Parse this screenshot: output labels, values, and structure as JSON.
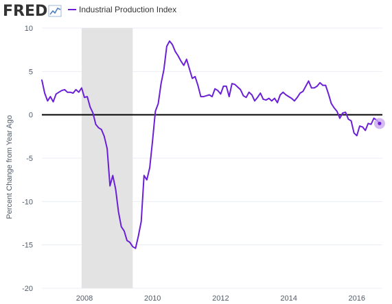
{
  "header": {
    "logo_text": "FRED",
    "legend_label": "Industrial Production Index"
  },
  "colors": {
    "series": "#6a1fd6",
    "recession": "#e3e3e3",
    "zero_line": "#000000",
    "grid": "#e9eef3",
    "axis_text": "#505a66",
    "logo_text": "#333333",
    "logo_icon": "#4a7fc1",
    "end_marker_halo": "#caa8f0"
  },
  "chart_data": {
    "type": "line",
    "title": "",
    "xlabel": "",
    "ylabel": "Percent Change from Year Ago",
    "ylim": [
      -20,
      10
    ],
    "xlim": [
      2006.75,
      2016.75
    ],
    "y_ticks": [
      10,
      5,
      0,
      -5,
      -10,
      -15,
      -20
    ],
    "x_ticks": [
      2008,
      2010,
      2012,
      2014,
      2016
    ],
    "grid": true,
    "zero_line": true,
    "recession_shading": [
      {
        "start": 2007.917,
        "end": 2009.417
      }
    ],
    "series": [
      {
        "name": "Industrial Production Index",
        "x": [
          2006.75,
          2006.833,
          2006.917,
          2007.0,
          2007.083,
          2007.167,
          2007.25,
          2007.333,
          2007.417,
          2007.5,
          2007.583,
          2007.667,
          2007.75,
          2007.833,
          2007.917,
          2008.0,
          2008.083,
          2008.167,
          2008.25,
          2008.333,
          2008.417,
          2008.5,
          2008.583,
          2008.667,
          2008.75,
          2008.833,
          2008.917,
          2009.0,
          2009.083,
          2009.167,
          2009.25,
          2009.333,
          2009.417,
          2009.5,
          2009.583,
          2009.667,
          2009.75,
          2009.833,
          2009.917,
          2010.0,
          2010.083,
          2010.167,
          2010.25,
          2010.333,
          2010.417,
          2010.5,
          2010.583,
          2010.667,
          2010.75,
          2010.833,
          2010.917,
          2011.0,
          2011.083,
          2011.167,
          2011.25,
          2011.333,
          2011.417,
          2011.5,
          2011.583,
          2011.667,
          2011.75,
          2011.833,
          2011.917,
          2012.0,
          2012.083,
          2012.167,
          2012.25,
          2012.333,
          2012.417,
          2012.5,
          2012.583,
          2012.667,
          2012.75,
          2012.833,
          2012.917,
          2013.0,
          2013.083,
          2013.167,
          2013.25,
          2013.333,
          2013.417,
          2013.5,
          2013.583,
          2013.667,
          2013.75,
          2013.833,
          2013.917,
          2014.0,
          2014.083,
          2014.167,
          2014.25,
          2014.333,
          2014.417,
          2014.5,
          2014.583,
          2014.667,
          2014.75,
          2014.833,
          2014.917,
          2015.0,
          2015.083,
          2015.167,
          2015.25,
          2015.333,
          2015.417,
          2015.5,
          2015.583,
          2015.667,
          2015.75,
          2015.833,
          2015.917,
          2016.0,
          2016.083,
          2016.167,
          2016.25,
          2016.333,
          2016.417,
          2016.5,
          2016.583,
          2016.667
        ],
        "values": [
          4.0,
          2.5,
          1.6,
          2.1,
          1.5,
          2.4,
          2.6,
          2.8,
          2.9,
          2.6,
          2.6,
          2.5,
          2.9,
          2.6,
          3.1,
          2.0,
          2.1,
          0.9,
          0.2,
          -1.1,
          -1.5,
          -1.7,
          -2.5,
          -3.9,
          -8.2,
          -7.0,
          -8.6,
          -11.2,
          -12.9,
          -13.4,
          -14.5,
          -14.7,
          -15.2,
          -15.4,
          -14.0,
          -12.3,
          -7.0,
          -7.5,
          -6.1,
          -3.0,
          0.4,
          1.3,
          3.6,
          5.2,
          7.9,
          8.5,
          8.1,
          7.3,
          6.8,
          6.2,
          5.7,
          6.4,
          5.3,
          4.2,
          4.4,
          3.4,
          2.1,
          2.1,
          2.2,
          2.3,
          2.1,
          3.0,
          2.8,
          2.4,
          3.3,
          3.3,
          2.1,
          3.6,
          3.5,
          3.2,
          2.9,
          2.2,
          2.0,
          2.6,
          2.3,
          1.6,
          2.0,
          2.5,
          1.8,
          1.7,
          1.9,
          1.6,
          1.9,
          1.4,
          2.3,
          2.6,
          2.3,
          2.1,
          1.9,
          1.6,
          2.0,
          2.5,
          2.7,
          3.3,
          3.9,
          3.1,
          3.1,
          3.3,
          3.7,
          3.4,
          3.4,
          2.4,
          1.3,
          0.8,
          0.4,
          -0.4,
          0.2,
          0.3,
          -0.5,
          -0.7,
          -2.1,
          -2.4,
          -1.3,
          -1.4,
          -1.8,
          -1.0,
          -1.1,
          -0.4,
          -0.6,
          -1.0
        ]
      }
    ]
  }
}
